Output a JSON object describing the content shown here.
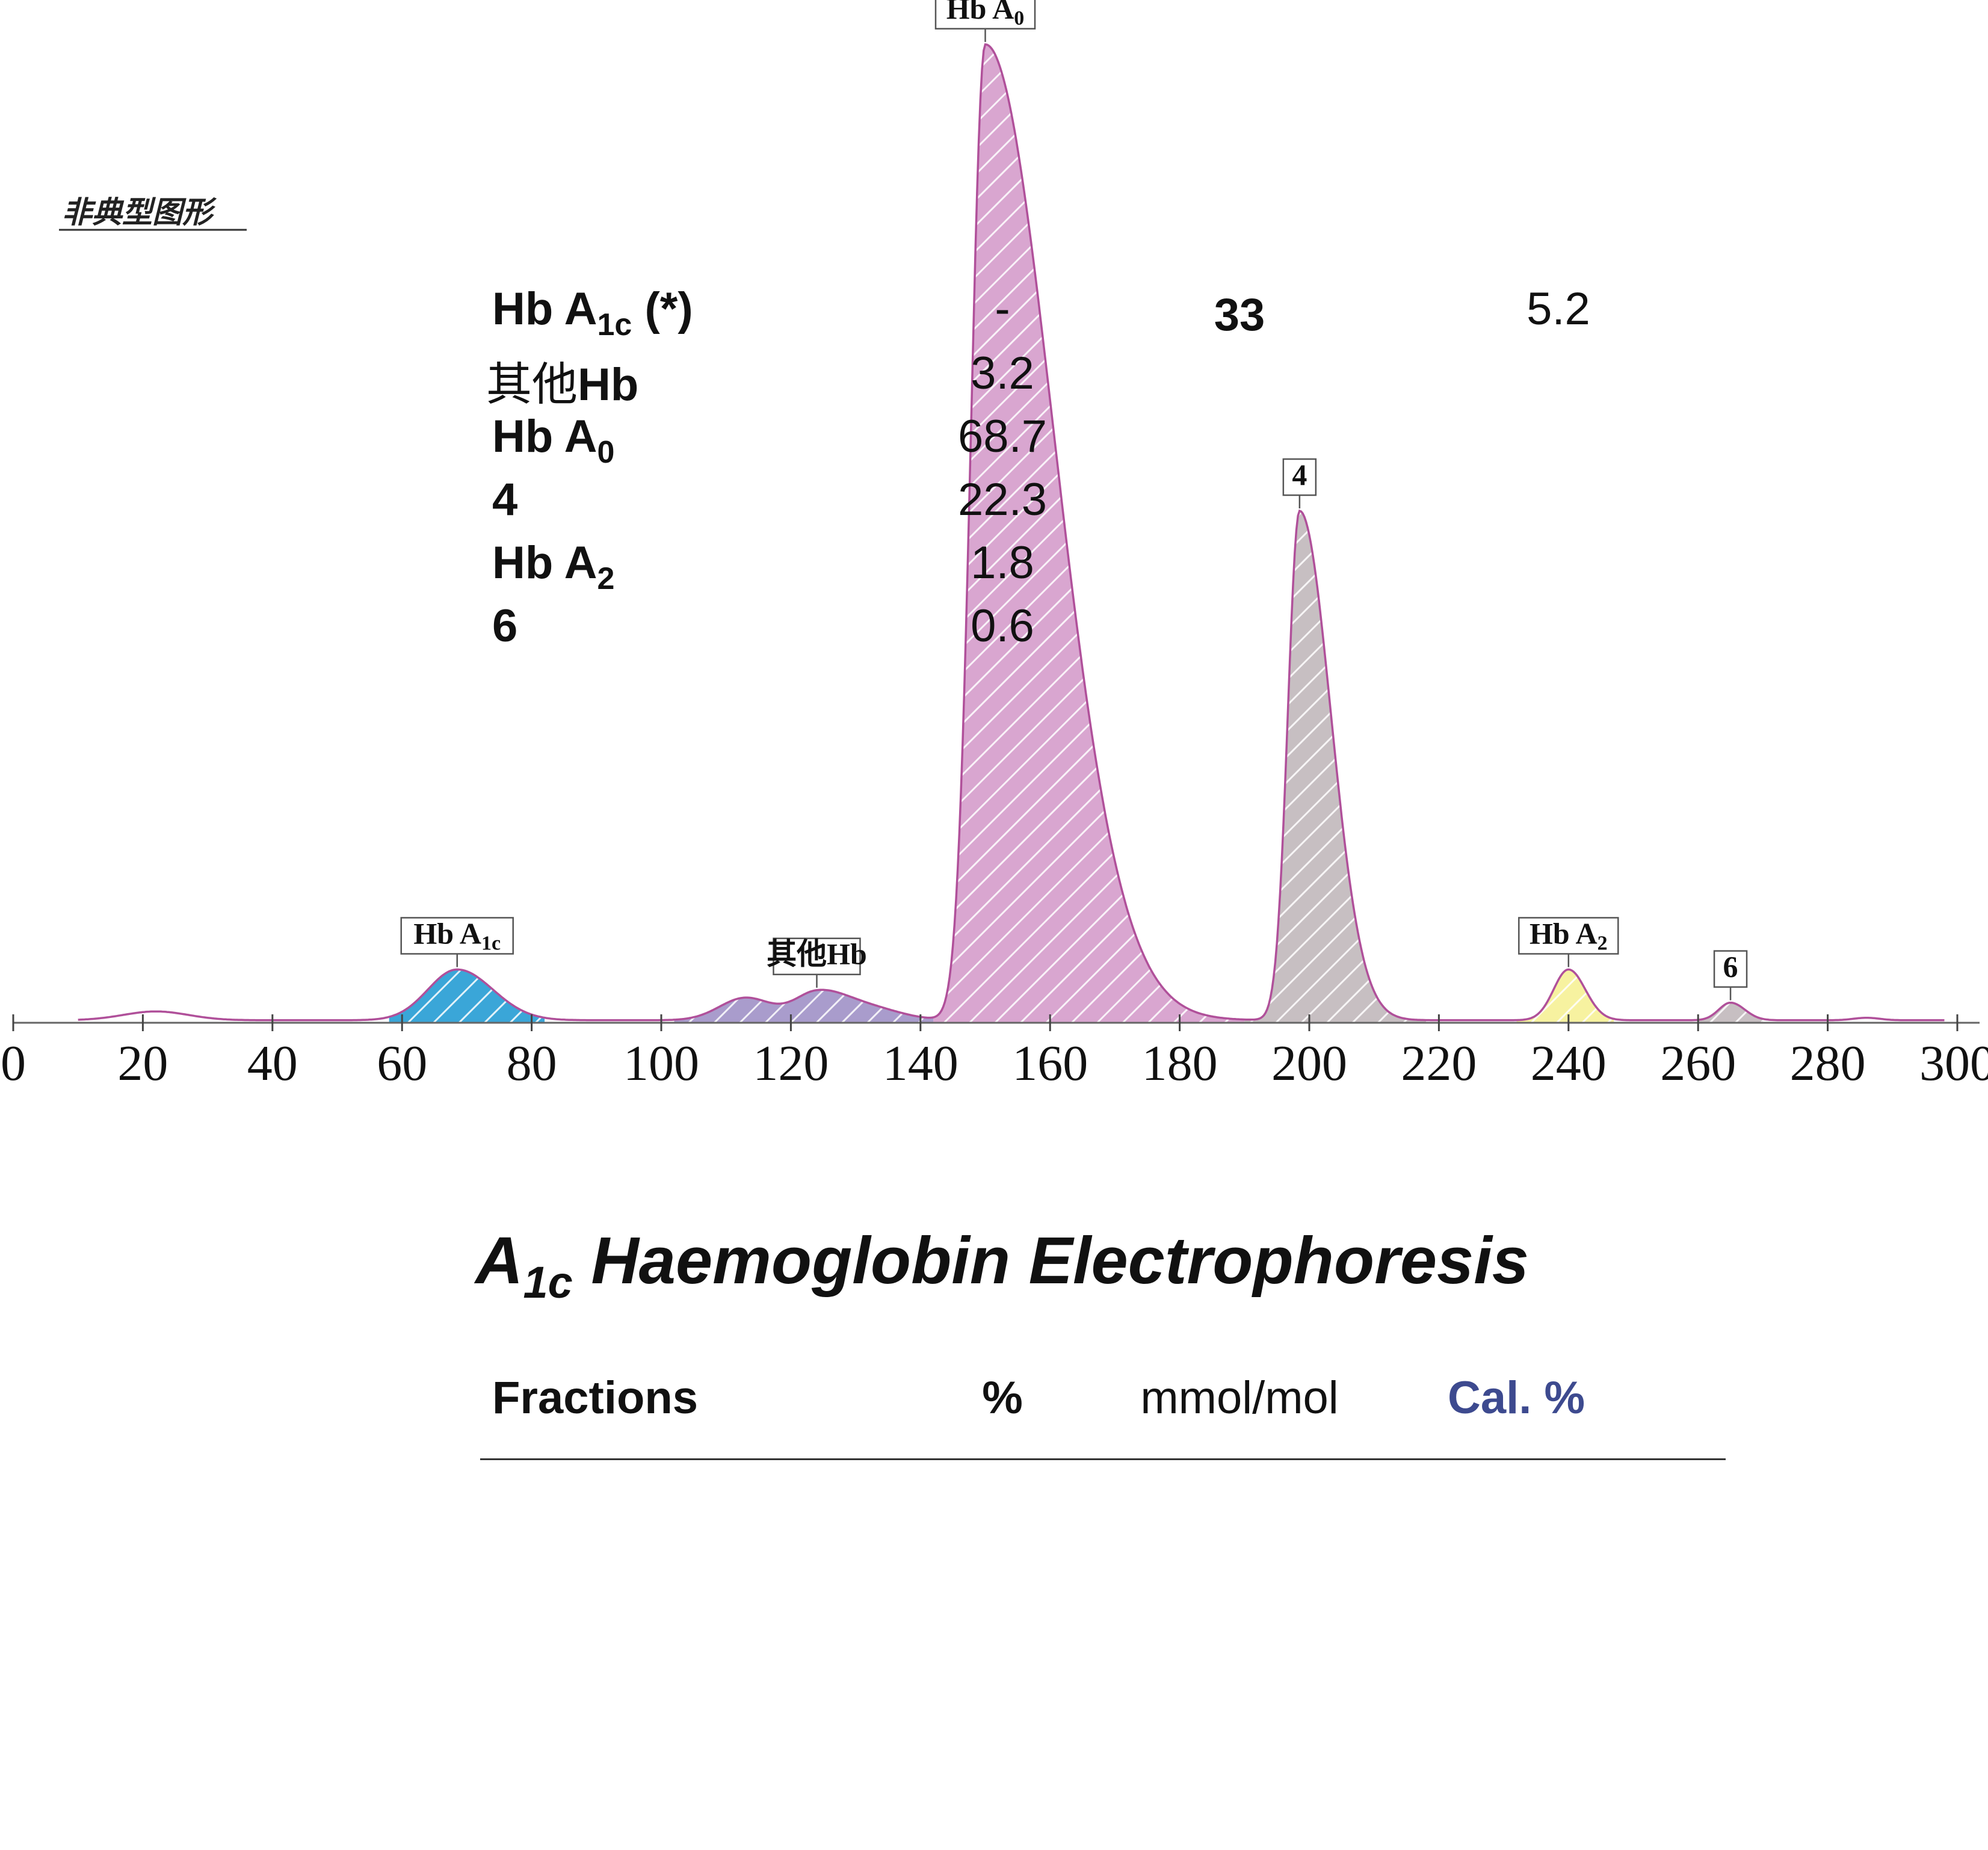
{
  "chart_data": {
    "type": "area",
    "x_axis": {
      "ticks": [
        0,
        20,
        40,
        60,
        80,
        100,
        120,
        140,
        160,
        180,
        200,
        220,
        240,
        260,
        280,
        300
      ],
      "range": [
        0,
        300
      ]
    },
    "note": "非典型图形",
    "colors": {
      "curve": "#b0509a",
      "baseline": "#666666",
      "Hb A1c": "#3aa6d8",
      "其他Hb": "#a99ccc",
      "Hb A0": "#d9a6d0",
      "4": "#c7bfc2",
      "Hb A2": "#f7f2a0",
      "6": "#c7bfc2"
    },
    "peaks": [
      {
        "name": "Hb A1c",
        "label_main": "Hb A",
        "label_sub": "1c",
        "center": 68.5,
        "height": 0.052,
        "width_left": 4.5,
        "width_right": 5.5,
        "region": [
          58,
          82
        ],
        "labeled": true
      },
      {
        "name": "其他Hb",
        "label_main": "其他Hb",
        "label_sub": "",
        "center": 124,
        "height": 0.027,
        "width_left": 3.5,
        "width_right": 4.5,
        "region": [
          102,
          142
        ],
        "labeled": true
      },
      {
        "name": "Hb A0",
        "label_main": "Hb A",
        "label_sub": "0",
        "center": 150,
        "height": 1.0,
        "width_left": 2.2,
        "width_right": 10.5,
        "region": [
          142,
          190
        ],
        "labeled": true
      },
      {
        "name": "4",
        "label_main": "4",
        "label_sub": "",
        "center": 198.5,
        "height": 0.522,
        "width_left": 1.8,
        "width_right": 4.8,
        "region": [
          190,
          218
        ],
        "labeled": true
      },
      {
        "name": "Hb A2",
        "label_main": "Hb A",
        "label_sub": "2",
        "center": 240,
        "height": 0.052,
        "width_left": 2.3,
        "width_right": 2.6,
        "region": [
          232,
          247
        ],
        "labeled": true
      },
      {
        "name": "6",
        "label_main": "6",
        "label_sub": "",
        "center": 265,
        "height": 0.018,
        "width_left": 1.8,
        "width_right": 2.2,
        "region": [
          260,
          270
        ],
        "labeled": true
      }
    ],
    "minor_bumps": [
      {
        "center": 22,
        "height": 0.009,
        "width": 5
      },
      {
        "center": 113,
        "height": 0.023,
        "width": 4
      },
      {
        "center": 132,
        "height": 0.012,
        "width": 5
      },
      {
        "center": 286,
        "height": 0.0025,
        "width": 2
      }
    ]
  },
  "report": {
    "title_pre": "A",
    "title_sub": "1c",
    "title_post": " Haemoglobin Electrophoresis",
    "headers": {
      "fractions": "Fractions",
      "percent": "%",
      "mmol": "mmol/mol",
      "cal": "Cal. %"
    },
    "rows": [
      {
        "main": "Hb A",
        "sub": "1c",
        "post": " (*)",
        "bold": true,
        "percent": "-",
        "mmol": "33",
        "cal": "5.2"
      },
      {
        "main": "其他",
        "sub": "",
        "post": "Hb",
        "bold": false,
        "percent": "3.2",
        "mmol": "",
        "cal": ""
      },
      {
        "main": "Hb A",
        "sub": "0",
        "post": "",
        "bold": true,
        "percent": "68.7",
        "mmol": "",
        "cal": ""
      },
      {
        "main": "4",
        "sub": "",
        "post": "",
        "bold": true,
        "percent": "22.3",
        "mmol": "",
        "cal": ""
      },
      {
        "main": "Hb A",
        "sub": "2",
        "post": "",
        "bold": true,
        "percent": "1.8",
        "mmol": "",
        "cal": ""
      },
      {
        "main": "6",
        "sub": "",
        "post": "",
        "bold": true,
        "percent": "0.6",
        "mmol": "",
        "cal": ""
      }
    ]
  }
}
